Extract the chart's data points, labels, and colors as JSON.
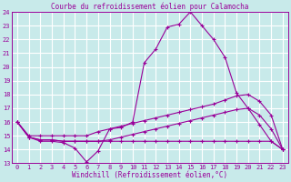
{
  "title": "Courbe du refroidissement éolien pour Calamocha",
  "xlabel": "Windchill (Refroidissement éolien,°C)",
  "bg_color": "#c8eaea",
  "line_color": "#990099",
  "grid_color": "#ffffff",
  "xlim": [
    -0.5,
    23.5
  ],
  "ylim": [
    13,
    24
  ],
  "xticks": [
    0,
    1,
    2,
    3,
    4,
    5,
    6,
    7,
    8,
    9,
    10,
    11,
    12,
    13,
    14,
    15,
    16,
    17,
    18,
    19,
    20,
    21,
    22,
    23
  ],
  "yticks": [
    13,
    14,
    15,
    16,
    17,
    18,
    19,
    20,
    21,
    22,
    23,
    24
  ],
  "series": [
    [
      16.0,
      14.9,
      14.6,
      14.6,
      14.5,
      14.1,
      13.1,
      13.9,
      15.5,
      15.6,
      16.0,
      20.3,
      21.3,
      22.9,
      23.1,
      24.0,
      23.0,
      22.0,
      20.7,
      18.1,
      17.0,
      15.8,
      14.6,
      14.0
    ],
    [
      16.0,
      15.0,
      15.0,
      15.0,
      15.0,
      15.0,
      15.0,
      15.3,
      15.5,
      15.7,
      15.9,
      16.1,
      16.3,
      16.5,
      16.7,
      16.9,
      17.1,
      17.3,
      17.6,
      17.9,
      18.0,
      17.5,
      16.5,
      14.0
    ],
    [
      16.0,
      14.9,
      14.7,
      14.7,
      14.6,
      14.6,
      14.6,
      14.6,
      14.7,
      14.9,
      15.1,
      15.3,
      15.5,
      15.7,
      15.9,
      16.1,
      16.3,
      16.5,
      16.7,
      16.9,
      17.0,
      16.5,
      15.5,
      14.0
    ],
    [
      16.0,
      14.9,
      14.7,
      14.7,
      14.6,
      14.6,
      14.6,
      14.6,
      14.6,
      14.6,
      14.6,
      14.6,
      14.6,
      14.6,
      14.6,
      14.6,
      14.6,
      14.6,
      14.6,
      14.6,
      14.6,
      14.6,
      14.6,
      14.0
    ]
  ],
  "title_fontsize": 5.5,
  "label_fontsize": 5.5,
  "tick_fontsize": 5.0
}
